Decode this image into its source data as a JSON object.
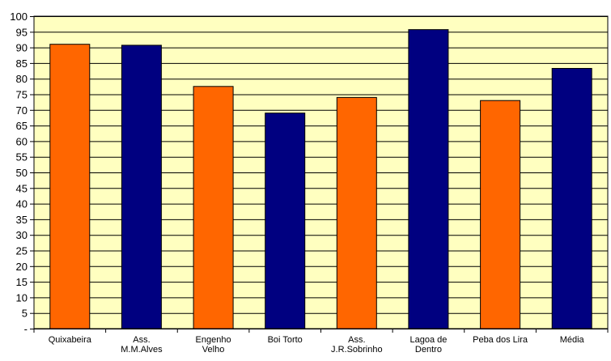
{
  "chart_data": {
    "type": "bar",
    "title": "",
    "xlabel": "",
    "ylabel": "",
    "categories": [
      [
        "Quixabeira"
      ],
      [
        "Ass.",
        "M.M.Alves"
      ],
      [
        "Engenho",
        "Velho"
      ],
      [
        "Boi Torto"
      ],
      [
        "Ass.",
        "J.R.Sobrinho"
      ],
      [
        "Lagoa de",
        "Dentro"
      ],
      [
        "Peba dos Lira"
      ],
      [
        "Média"
      ]
    ],
    "values": [
      91,
      90.7,
      77.5,
      69,
      74,
      95.7,
      73,
      83.3
    ],
    "bar_colors": [
      "#FF6600",
      "#000080",
      "#FF6600",
      "#000080",
      "#FF6600",
      "#000080",
      "#FF6600",
      "#000080"
    ],
    "ylim": [
      0,
      100
    ],
    "y_ticks": [
      0,
      5,
      10,
      15,
      20,
      25,
      30,
      35,
      40,
      45,
      50,
      55,
      60,
      65,
      70,
      75,
      80,
      85,
      90,
      95,
      100
    ],
    "y_tick_labels": [
      "-",
      "5",
      "10",
      "15",
      "20",
      "25",
      "30",
      "35",
      "40",
      "45",
      "50",
      "55",
      "60",
      "65",
      "70",
      "75",
      "80",
      "85",
      "90",
      "95",
      "100"
    ],
    "grid": true,
    "legend": "none",
    "plot_background": "#FFFFC0"
  }
}
